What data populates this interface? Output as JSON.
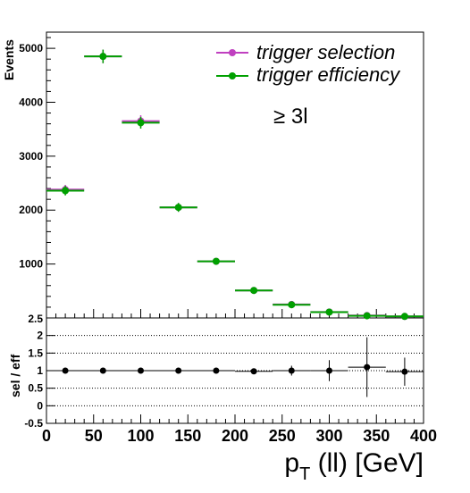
{
  "chart_data": {
    "type": "scatter",
    "upper": {
      "ylabel": "Events",
      "ylim": [
        0,
        5300
      ],
      "yticks": [
        1000,
        2000,
        3000,
        4000,
        5000
      ],
      "annotation": "≥ 3l",
      "legend_position": "top-right",
      "series": [
        {
          "name": "trigger selection",
          "color": "#c040c0",
          "x": [
            20,
            60,
            100,
            140,
            180,
            220,
            260,
            300,
            340,
            380
          ],
          "y": [
            2380,
            4850,
            3650,
            2050,
            1050,
            510,
            250,
            110,
            45,
            28
          ]
        },
        {
          "name": "trigger efficiency",
          "color": "#00a000",
          "x": [
            20,
            60,
            100,
            140,
            180,
            220,
            260,
            300,
            340,
            380
          ],
          "y": [
            2360,
            4850,
            3620,
            2050,
            1050,
            510,
            245,
            108,
            40,
            28
          ]
        }
      ]
    },
    "ratio": {
      "ylabel": "sel / eff",
      "ylim": [
        -0.5,
        2.5
      ],
      "yticks": [
        "-0.5",
        "0",
        "0.5",
        "1",
        "1.5",
        "2"
      ],
      "top_tick": "2.5",
      "gridlines": [
        0,
        0.5,
        1,
        1.5,
        2
      ],
      "series": {
        "color": "#000000",
        "x": [
          20,
          60,
          100,
          140,
          180,
          220,
          260,
          300,
          340,
          380
        ],
        "y": [
          1.0,
          1.0,
          1.0,
          1.0,
          1.0,
          0.98,
          1.0,
          1.0,
          1.1,
          0.97
        ],
        "yerr": [
          0.03,
          0.02,
          0.03,
          0.03,
          0.04,
          0.07,
          0.14,
          0.3,
          0.85,
          0.4
        ]
      }
    },
    "xlabel_main": "p",
    "xlabel_sub": "T",
    "xlabel_rest": " (ll) [GeV]",
    "xlim": [
      0,
      400
    ],
    "xticks": [
      "0",
      "50",
      "100",
      "150",
      "200",
      "250",
      "300",
      "350",
      "400"
    ],
    "bin_width": 40
  }
}
